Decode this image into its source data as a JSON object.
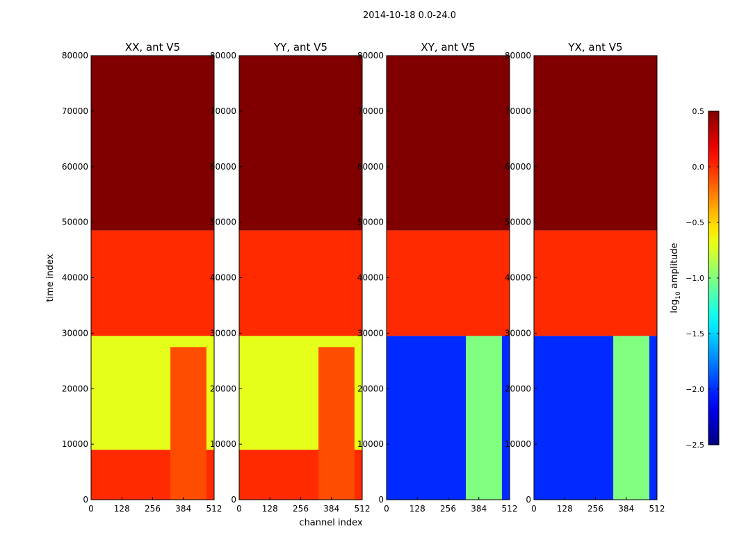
{
  "chart_data": {
    "type": "heatmap",
    "suptitle": "2014-10-18 0.0-24.0",
    "xlabel": "channel index",
    "ylabel": "time index",
    "xlim": [
      0,
      512
    ],
    "ylim": [
      0,
      80000
    ],
    "xticks": [
      0,
      128,
      256,
      384,
      512
    ],
    "yticks": [
      0,
      10000,
      20000,
      30000,
      40000,
      50000,
      60000,
      70000,
      80000
    ],
    "colorbar": {
      "label_prefix": "log",
      "label_sub": "10",
      "label_suffix": " amplitude",
      "range": [
        -2.5,
        0.5
      ],
      "colormap": "jet",
      "ticks": [
        0.5,
        0.0,
        -0.5,
        -1.0,
        -1.5,
        -2.0,
        -2.5
      ],
      "tick_labels": [
        "0.5",
        "0.0",
        "−0.5",
        "−1.0",
        "−1.5",
        "−2.0",
        "−2.5"
      ]
    },
    "panels": [
      {
        "title": "XX, ant V5",
        "regions": [
          {
            "t_start": 48500,
            "t_end": 80000,
            "ch_start": 0,
            "ch_end": 512,
            "value": 0.5
          },
          {
            "t_start": 29500,
            "t_end": 48500,
            "ch_start": 0,
            "ch_end": 512,
            "value": 0.0
          },
          {
            "t_start": 9000,
            "t_end": 29500,
            "ch_start": 0,
            "ch_end": 512,
            "value": -0.7
          },
          {
            "t_start": 0,
            "t_end": 9000,
            "ch_start": 0,
            "ch_end": 512,
            "value": 0.0
          },
          {
            "t_start": 0,
            "t_end": 27500,
            "ch_start": 330,
            "ch_end": 480,
            "value": -0.1
          }
        ]
      },
      {
        "title": "YY, ant V5",
        "regions": [
          {
            "t_start": 48500,
            "t_end": 80000,
            "ch_start": 0,
            "ch_end": 512,
            "value": 0.5
          },
          {
            "t_start": 29500,
            "t_end": 48500,
            "ch_start": 0,
            "ch_end": 512,
            "value": 0.0
          },
          {
            "t_start": 9000,
            "t_end": 29500,
            "ch_start": 0,
            "ch_end": 512,
            "value": -0.7
          },
          {
            "t_start": 0,
            "t_end": 9000,
            "ch_start": 0,
            "ch_end": 512,
            "value": 0.0
          },
          {
            "t_start": 0,
            "t_end": 27500,
            "ch_start": 330,
            "ch_end": 480,
            "value": -0.1
          }
        ]
      },
      {
        "title": "XY, ant V5",
        "regions": [
          {
            "t_start": 48500,
            "t_end": 80000,
            "ch_start": 0,
            "ch_end": 512,
            "value": 0.5
          },
          {
            "t_start": 29500,
            "t_end": 48500,
            "ch_start": 0,
            "ch_end": 512,
            "value": 0.0
          },
          {
            "t_start": 0,
            "t_end": 29500,
            "ch_start": 0,
            "ch_end": 512,
            "value": -2.0
          },
          {
            "t_start": 0,
            "t_end": 29500,
            "ch_start": 330,
            "ch_end": 480,
            "value": -1.0
          }
        ]
      },
      {
        "title": "YX, ant V5",
        "regions": [
          {
            "t_start": 48500,
            "t_end": 80000,
            "ch_start": 0,
            "ch_end": 512,
            "value": 0.5
          },
          {
            "t_start": 29500,
            "t_end": 48500,
            "ch_start": 0,
            "ch_end": 512,
            "value": 0.0
          },
          {
            "t_start": 0,
            "t_end": 29500,
            "ch_start": 0,
            "ch_end": 512,
            "value": -2.0
          },
          {
            "t_start": 0,
            "t_end": 29500,
            "ch_start": 330,
            "ch_end": 480,
            "value": -1.0
          }
        ]
      }
    ]
  }
}
